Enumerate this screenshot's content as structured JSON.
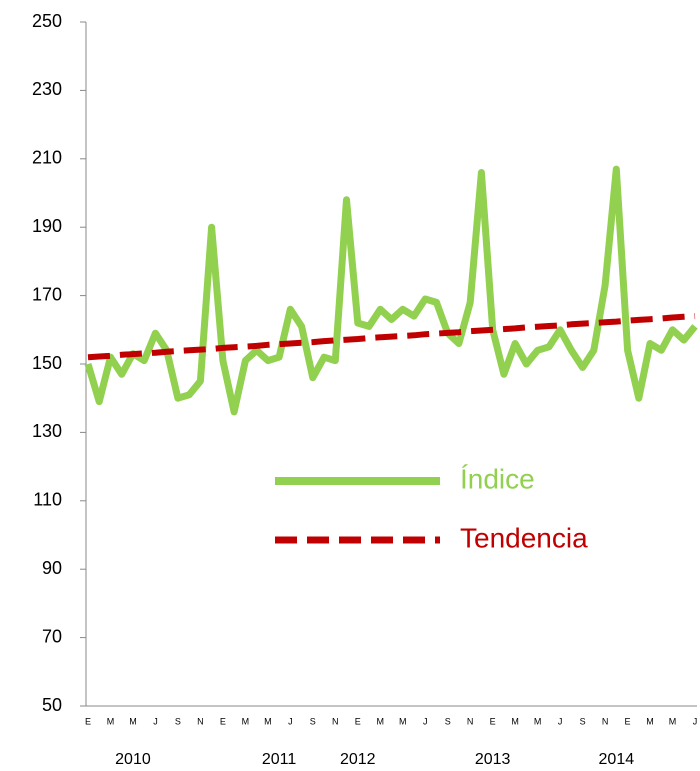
{
  "chart_data": {
    "type": "line",
    "categories": [
      "E",
      null,
      "M",
      null,
      "M",
      null,
      "J",
      null,
      "S",
      null,
      "N",
      null,
      "E",
      null,
      "M",
      null,
      "M",
      null,
      "J",
      null,
      "S",
      null,
      "N",
      null,
      "E",
      null,
      "M",
      null,
      "M",
      null,
      "J",
      null,
      "S",
      null,
      "N",
      null,
      "E",
      null,
      "M",
      null,
      "M",
      null,
      "J",
      null,
      "S",
      null,
      "N",
      null,
      "E",
      null,
      "M",
      null,
      "M",
      null,
      "J"
    ],
    "year_labels": [
      null,
      null,
      null,
      null,
      "2010",
      null,
      null,
      null,
      null,
      null,
      null,
      null,
      null,
      null,
      null,
      null,
      null,
      "2011",
      null,
      null,
      null,
      null,
      null,
      null,
      "2012",
      null,
      null,
      null,
      null,
      null,
      null,
      null,
      null,
      null,
      null,
      null,
      "2013",
      null,
      null,
      null,
      null,
      null,
      null,
      null,
      null,
      null,
      null,
      "2014",
      null,
      null,
      null,
      null,
      null,
      null,
      null
    ],
    "series": [
      {
        "name": "Índice",
        "color": "#92d050",
        "dash": false,
        "values": [
          150,
          139,
          152,
          147,
          153,
          151,
          159,
          154,
          140,
          141,
          145,
          190,
          151,
          136,
          151,
          154,
          151,
          152,
          166,
          161,
          146,
          152,
          151,
          198,
          162,
          161,
          166,
          163,
          166,
          164,
          169,
          168,
          159,
          156,
          168,
          206,
          160,
          147,
          156,
          150,
          154,
          155,
          160,
          154,
          149,
          154,
          173,
          207,
          154,
          140,
          156,
          154,
          160,
          157,
          161
        ]
      },
      {
        "name": "Tendencia",
        "color": "#c00000",
        "dash": true,
        "values": [
          152.0,
          152.2,
          152.4,
          152.7,
          152.9,
          153.1,
          153.3,
          153.6,
          153.8,
          154.0,
          154.2,
          154.4,
          154.7,
          154.9,
          155.1,
          155.3,
          155.6,
          155.8,
          156.0,
          156.2,
          156.4,
          156.7,
          156.9,
          157.1,
          157.3,
          157.6,
          157.8,
          158.0,
          158.2,
          158.4,
          158.7,
          158.9,
          159.1,
          159.3,
          159.6,
          159.8,
          160.0,
          160.2,
          160.4,
          160.7,
          160.9,
          161.1,
          161.3,
          161.6,
          161.8,
          162.0,
          162.2,
          162.4,
          162.7,
          162.9,
          163.1,
          163.3,
          163.6,
          163.8,
          164.0
        ]
      }
    ],
    "ylim": [
      50,
      250
    ],
    "yticks": [
      50,
      70,
      90,
      110,
      130,
      150,
      170,
      190,
      210,
      230,
      250
    ],
    "grid": false,
    "legend": "center"
  }
}
